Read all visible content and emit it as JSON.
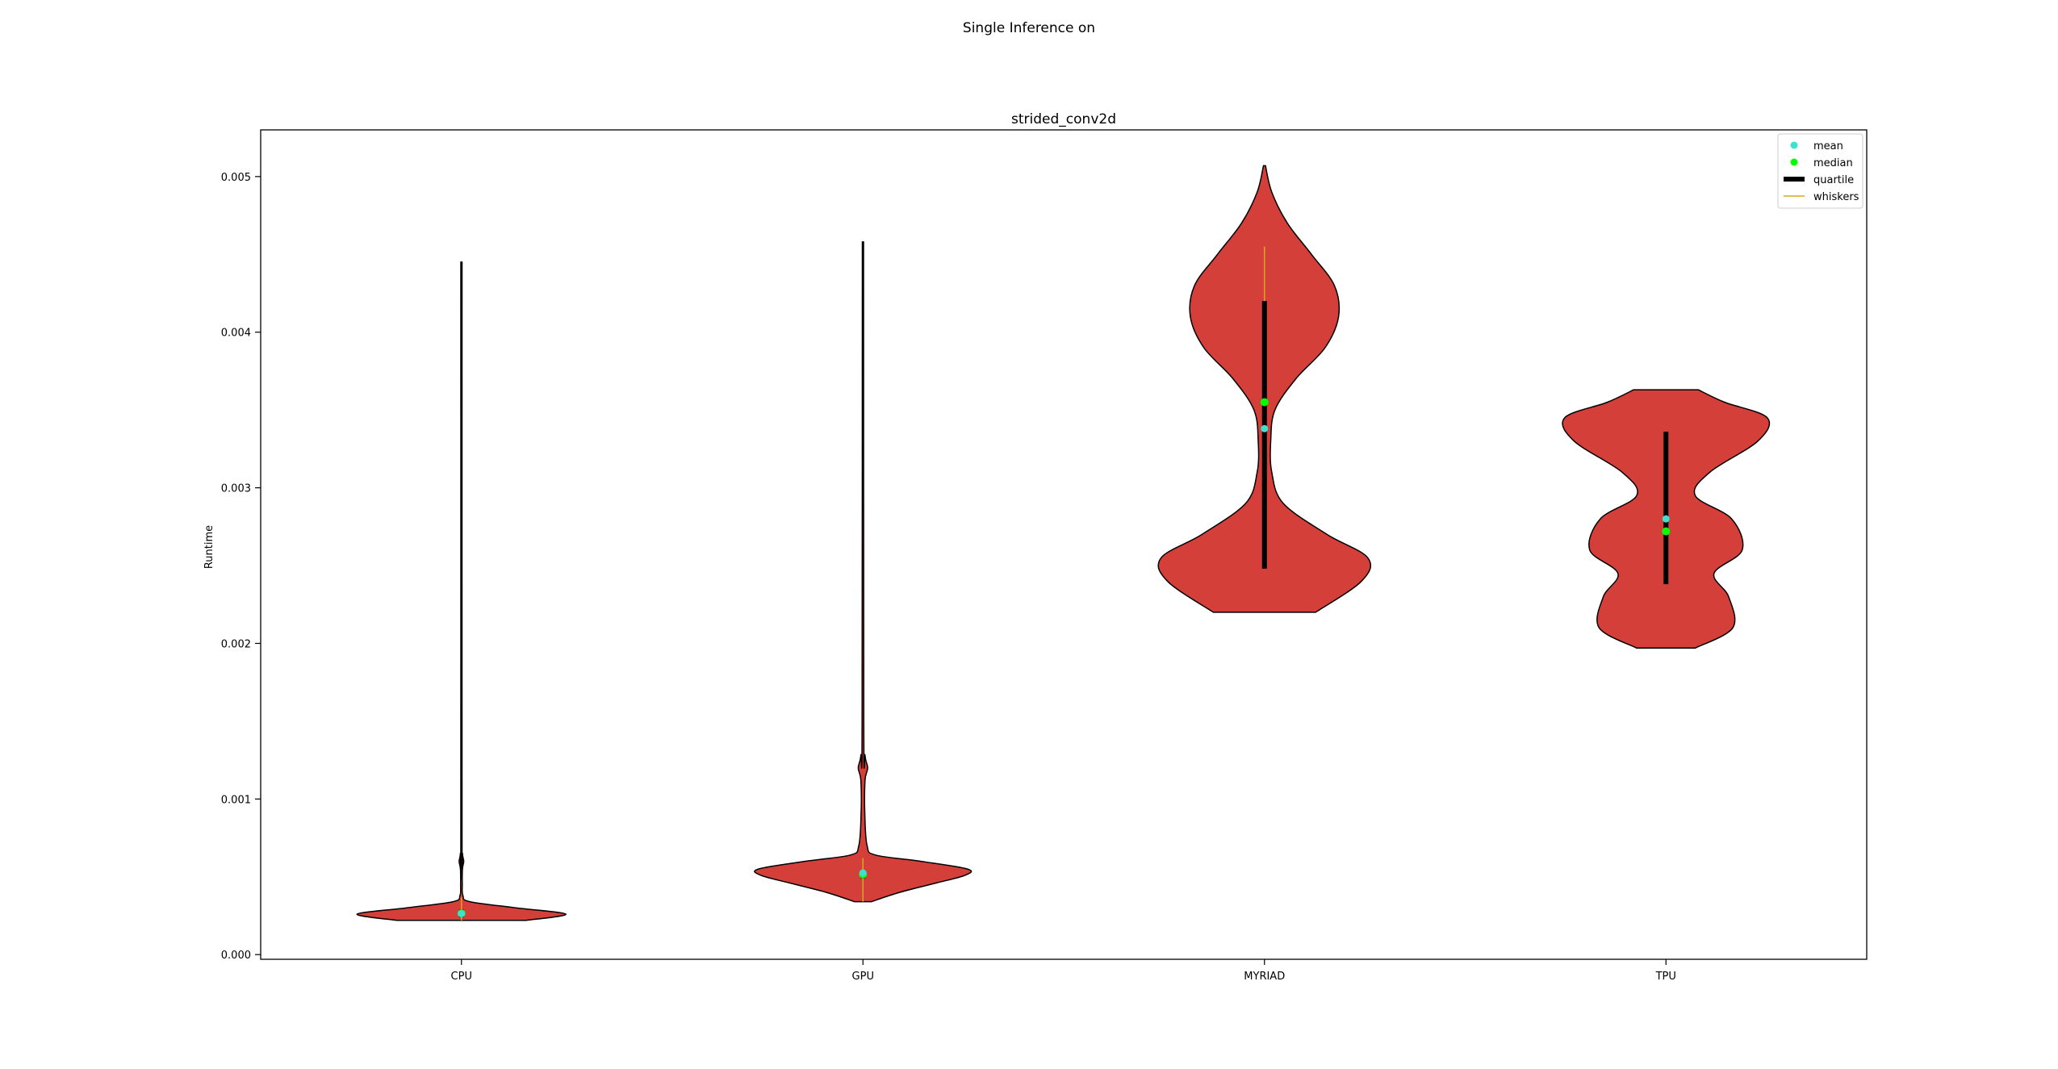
{
  "figure": {
    "suptitle": "Single Inference on"
  },
  "chart_data": {
    "type": "violin",
    "title": "strided_conv2d",
    "xlabel": "",
    "ylabel": "Runtime",
    "ylim": [
      -3e-05,
      0.0053
    ],
    "yticks": [
      0.0,
      0.001,
      0.002,
      0.003,
      0.004,
      0.005
    ],
    "ytick_labels": [
      "0.000",
      "0.001",
      "0.002",
      "0.003",
      "0.004",
      "0.005"
    ],
    "categories": [
      "CPU",
      "GPU",
      "MYRIAD",
      "TPU"
    ],
    "grid": false,
    "legend": {
      "placement": "top-right",
      "entries": [
        {
          "label": "mean",
          "kind": "marker",
          "color": "#40e0d0"
        },
        {
          "label": "median",
          "kind": "marker",
          "color": "#00ff00"
        },
        {
          "label": "quartile",
          "kind": "bar",
          "color": "#000000"
        },
        {
          "label": "whiskers",
          "kind": "line",
          "color": "#daa520"
        }
      ]
    },
    "colors": {
      "violin_fill": "#d43f3a",
      "violin_edge": "#000000",
      "mean": "#40e0d0",
      "median": "#00ff00",
      "quartile": "#000000",
      "whiskers": "#daa520"
    },
    "violins": [
      {
        "category": "CPU",
        "min": 0.00022,
        "max": 0.00445,
        "mean": 0.000263,
        "median": 0.000265,
        "q1": 0.00024,
        "q3": 0.00029,
        "whisker_low": 0.00022,
        "whisker_high": 0.00037,
        "profile": [
          [
            0.00022,
            0.62
          ],
          [
            0.00026,
            1.0
          ],
          [
            0.0003,
            0.53
          ],
          [
            0.00034,
            0.08
          ],
          [
            0.00038,
            0.014
          ],
          [
            0.00045,
            0.008
          ],
          [
            0.00055,
            0.01
          ],
          [
            0.0006,
            0.022
          ],
          [
            0.00065,
            0.01
          ],
          [
            0.0008,
            0.006
          ],
          [
            0.00445,
            0.006
          ]
        ]
      },
      {
        "category": "GPU",
        "min": 0.00034,
        "max": 0.00458,
        "mean": 0.000525,
        "median": 0.000515,
        "q1": 0.00049,
        "q3": 0.00054,
        "whisker_low": 0.00034,
        "whisker_high": 0.00062,
        "profile": [
          [
            0.00034,
            0.08
          ],
          [
            0.0004,
            0.35
          ],
          [
            0.00046,
            0.7
          ],
          [
            0.00051,
            0.98
          ],
          [
            0.00055,
            1.0
          ],
          [
            0.0006,
            0.55
          ],
          [
            0.00064,
            0.12
          ],
          [
            0.0007,
            0.04
          ],
          [
            0.0009,
            0.018
          ],
          [
            0.00112,
            0.02
          ],
          [
            0.0012,
            0.045
          ],
          [
            0.00128,
            0.02
          ],
          [
            0.0015,
            0.008
          ],
          [
            0.00458,
            0.006
          ]
        ]
      },
      {
        "category": "MYRIAD",
        "min": 0.0022,
        "max": 0.00507,
        "mean": 0.00338,
        "median": 0.00355,
        "q1": 0.00248,
        "q3": 0.0042,
        "whisker_low": 0.00248,
        "whisker_high": 0.00455,
        "profile": [
          [
            0.0022,
            0.49
          ],
          [
            0.0024,
            0.93
          ],
          [
            0.00255,
            0.99
          ],
          [
            0.0027,
            0.6
          ],
          [
            0.0029,
            0.18
          ],
          [
            0.0031,
            0.07
          ],
          [
            0.0033,
            0.06
          ],
          [
            0.0035,
            0.1
          ],
          [
            0.0037,
            0.3
          ],
          [
            0.0039,
            0.58
          ],
          [
            0.0041,
            0.71
          ],
          [
            0.0043,
            0.67
          ],
          [
            0.0045,
            0.45
          ],
          [
            0.0047,
            0.22
          ],
          [
            0.0049,
            0.07
          ],
          [
            0.00507,
            0.01
          ]
        ]
      },
      {
        "category": "TPU",
        "min": 0.00197,
        "max": 0.00363,
        "mean": 0.0028,
        "median": 0.00272,
        "q1": 0.00238,
        "q3": 0.00336,
        "whisker_low": 0.00238,
        "whisker_high": 0.00336,
        "profile": [
          [
            0.00197,
            0.28
          ],
          [
            0.0021,
            0.64
          ],
          [
            0.0023,
            0.6
          ],
          [
            0.00245,
            0.46
          ],
          [
            0.0026,
            0.73
          ],
          [
            0.0028,
            0.63
          ],
          [
            0.00295,
            0.28
          ],
          [
            0.0031,
            0.42
          ],
          [
            0.0033,
            0.88
          ],
          [
            0.00345,
            0.97
          ],
          [
            0.00355,
            0.56
          ],
          [
            0.00363,
            0.31
          ]
        ]
      }
    ]
  }
}
